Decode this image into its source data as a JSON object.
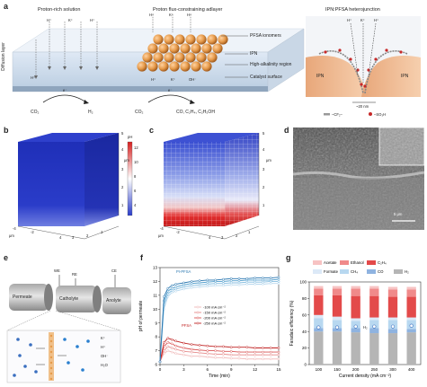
{
  "panels": {
    "a": {
      "letter": "a",
      "headers": [
        "Proton-rich solution",
        "Proton flux-constraining adlayer",
        "IPN:PFSA heterojunction"
      ],
      "side_label": "Diffusion layer",
      "ions_left": [
        "H⁺",
        "K⁺",
        "H⁺",
        "H⁺"
      ],
      "ions_mid": [
        "H⁺",
        "K⁺",
        "H⁺"
      ],
      "ions_mid_bottom": [
        "H⁺",
        "K⁺",
        "OH⁻"
      ],
      "reaction_left": {
        "reactant": "CO₂",
        "electron": "e⁻",
        "product": "H₂"
      },
      "reaction_mid": {
        "reactant": "CO₂",
        "electron": "e⁻",
        "product": "CO, C₂H₄, C₂H₅OH"
      },
      "legend": [
        "PFSA ionomers",
        "IPN",
        "High-alkalinity region",
        "Catalyst surface"
      ],
      "junction": {
        "ions": [
          "H⁺",
          "K⁺",
          "H⁺"
        ],
        "left": "IPN",
        "right": "IPN",
        "scale": "~20 nm",
        "key1": "–CF₂–",
        "key2": "–SO₃H"
      }
    },
    "b": {
      "letter": "b",
      "axis_z": [
        "5",
        "4",
        "3",
        "2",
        "1"
      ],
      "unit": "μm",
      "axis_x": [
        "4",
        "3",
        "2",
        "1"
      ],
      "axis_y": [
        "-4",
        "-2"
      ],
      "colorbar_title": "pH",
      "colorbar_ticks": [
        "12",
        "10",
        "8",
        "6",
        "4"
      ]
    },
    "c": {
      "letter": "c",
      "axis_z": [
        "5",
        "4",
        "3",
        "2",
        "1"
      ],
      "unit": "μm",
      "axis_x": [
        "4",
        "3",
        "2",
        "1"
      ],
      "axis_y": [
        "-2",
        "-4"
      ]
    },
    "d": {
      "letter": "d",
      "scale": "5 μm"
    },
    "e": {
      "letter": "e",
      "labels": [
        "WE",
        "RE",
        "CE"
      ],
      "cells": [
        "Permeate",
        "Catholyte",
        "Anolyte"
      ],
      "ions": [
        "K⁺",
        "H⁺",
        "OH⁻",
        "H₂O"
      ]
    },
    "f": {
      "letter": "f",
      "labels": [
        "PI-PFSA",
        "PFSA"
      ],
      "legend": [
        "-100 mA cm⁻²",
        "-150 mA cm⁻²",
        "-200 mA cm⁻²",
        "-250 mA cm⁻²"
      ]
    },
    "g": {
      "letter": "g",
      "legend": [
        "Acetate",
        "Ethanol",
        "C₂H₄",
        "Formate",
        "CH₄",
        "CO",
        "H₂"
      ],
      "h2_label": "H₂"
    }
  },
  "colors": {
    "blue": "#2a3cc9",
    "red": "#d62020",
    "orange": "#e69a4a",
    "ipn": "#e8a77a"
  },
  "chart_data": [
    {
      "type": "line",
      "panel": "f",
      "xlabel": "Time (min)",
      "ylabel": "pH of permeate",
      "xlim": [
        0,
        15
      ],
      "ylim": [
        6,
        13
      ],
      "xticks": [
        0,
        3,
        6,
        9,
        12,
        15
      ],
      "yticks": [
        6,
        7,
        8,
        9,
        10,
        11,
        12,
        13
      ],
      "x": [
        0,
        0.5,
        1,
        1.5,
        2,
        3,
        4,
        5,
        6,
        7,
        8,
        9,
        10,
        11,
        12,
        13,
        14,
        15
      ],
      "series": [
        {
          "name": "-100 mA cm⁻²",
          "group": "PFSA",
          "color": "#f0b8b8",
          "values": [
            6.2,
            6.8,
            7.0,
            6.9,
            6.8,
            6.7,
            6.6,
            6.6,
            6.55,
            6.5,
            6.5,
            6.45,
            6.45,
            6.4,
            6.4,
            6.4,
            6.4,
            6.4
          ]
        },
        {
          "name": "-150 mA cm⁻²",
          "group": "PFSA",
          "color": "#e68a8a",
          "values": [
            6.2,
            7.0,
            7.3,
            7.2,
            7.1,
            6.95,
            6.9,
            6.85,
            6.8,
            6.75,
            6.75,
            6.7,
            6.7,
            6.7,
            6.7,
            6.7,
            6.7,
            6.7
          ]
        },
        {
          "name": "-200 mA cm⁻²",
          "group": "PFSA",
          "color": "#d95454",
          "values": [
            6.2,
            7.3,
            7.6,
            7.5,
            7.35,
            7.2,
            7.1,
            7.05,
            7.0,
            7.0,
            6.95,
            6.95,
            6.9,
            6.9,
            6.9,
            6.9,
            6.9,
            6.9
          ]
        },
        {
          "name": "-250 mA cm⁻²",
          "group": "PFSA",
          "color": "#c02222",
          "values": [
            6.2,
            7.6,
            7.9,
            7.8,
            7.7,
            7.55,
            7.45,
            7.4,
            7.35,
            7.3,
            7.3,
            7.25,
            7.25,
            7.25,
            7.2,
            7.2,
            7.2,
            7.2
          ]
        },
        {
          "name": "-100 mA cm⁻²",
          "group": "PI-PFSA",
          "color": "#b8d8ee",
          "values": [
            6.2,
            10.0,
            10.9,
            11.2,
            11.3,
            11.45,
            11.55,
            11.6,
            11.65,
            11.7,
            11.7,
            11.75,
            11.75,
            11.8,
            11.8,
            11.8,
            11.85,
            11.85
          ]
        },
        {
          "name": "-150 mA cm⁻²",
          "group": "PI-PFSA",
          "color": "#84bde0",
          "values": [
            6.2,
            10.3,
            11.1,
            11.35,
            11.45,
            11.6,
            11.7,
            11.75,
            11.8,
            11.85,
            11.85,
            11.9,
            11.9,
            11.95,
            11.95,
            11.95,
            12.0,
            12.0
          ]
        },
        {
          "name": "-200 mA cm⁻²",
          "group": "PI-PFSA",
          "color": "#4d9ccc",
          "values": [
            6.2,
            10.6,
            11.3,
            11.5,
            11.6,
            11.75,
            11.85,
            11.9,
            11.95,
            12.0,
            12.0,
            12.05,
            12.05,
            12.1,
            12.1,
            12.1,
            12.1,
            12.15
          ]
        },
        {
          "name": "-250 mA cm⁻²",
          "group": "PI-PFSA",
          "color": "#2a77b0",
          "values": [
            6.2,
            10.9,
            11.5,
            11.7,
            11.8,
            11.9,
            12.0,
            12.05,
            12.1,
            12.1,
            12.15,
            12.2,
            12.2,
            12.2,
            12.25,
            12.25,
            12.25,
            12.3
          ]
        }
      ]
    },
    {
      "type": "bar",
      "panel": "g",
      "stacked": true,
      "xlabel": "Current density (mA cm⁻²)",
      "ylabel": "Faradaic efficiency (%)",
      "ylim": [
        0,
        100
      ],
      "yticks": [
        0,
        20,
        40,
        60,
        80,
        100
      ],
      "categories": [
        "100",
        "150",
        "200",
        "250",
        "300",
        "400"
      ],
      "series": [
        {
          "name": "H₂",
          "color": "#b5b5b5",
          "values": [
            40,
            40,
            39,
            38,
            38,
            39
          ]
        },
        {
          "name": "CO",
          "color": "#8fb3e0",
          "values": [
            4,
            4,
            5,
            6,
            5,
            4
          ]
        },
        {
          "name": "CH₄",
          "color": "#b8d8f0",
          "values": [
            12,
            10,
            9,
            10,
            11,
            11
          ]
        },
        {
          "name": "Formate",
          "color": "#dce9f7",
          "values": [
            4,
            4,
            3,
            3,
            3,
            3
          ]
        },
        {
          "name": "C₂H₄",
          "color": "#e34a4a",
          "values": [
            24,
            26,
            27,
            26,
            25,
            25
          ]
        },
        {
          "name": "Ethanol",
          "color": "#f08a8a",
          "values": [
            8,
            8,
            9,
            9,
            9,
            9
          ]
        },
        {
          "name": "Acetate",
          "color": "#f7c3c3",
          "values": [
            3,
            3,
            3,
            3,
            3,
            3
          ]
        }
      ],
      "scatter_marker": [
        45,
        45,
        46,
        46,
        46,
        47
      ]
    }
  ]
}
